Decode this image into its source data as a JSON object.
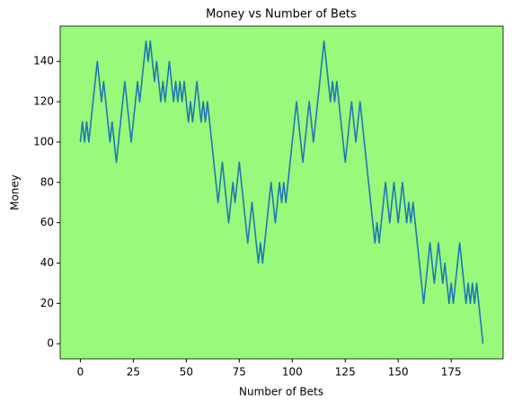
{
  "chart_data": {
    "type": "line",
    "title": "Money vs Number of Bets",
    "x_label": "Number of Bets",
    "y_label": "Money",
    "x": [
      0,
      1,
      2,
      3,
      4,
      5,
      6,
      7,
      8,
      9,
      10,
      11,
      12,
      13,
      14,
      15,
      16,
      17,
      18,
      19,
      20,
      21,
      22,
      23,
      24,
      25,
      26,
      27,
      28,
      29,
      30,
      31,
      32,
      33,
      34,
      35,
      36,
      37,
      38,
      39,
      40,
      41,
      42,
      43,
      44,
      45,
      46,
      47,
      48,
      49,
      50,
      51,
      52,
      53,
      54,
      55,
      56,
      57,
      58,
      59,
      60,
      61,
      62,
      63,
      64,
      65,
      66,
      67,
      68,
      69,
      70,
      71,
      72,
      73,
      74,
      75,
      76,
      77,
      78,
      79,
      80,
      81,
      82,
      83,
      84,
      85,
      86,
      87,
      88,
      89,
      90,
      91,
      92,
      93,
      94,
      95,
      96,
      97,
      98,
      99,
      100,
      101,
      102,
      103,
      104,
      105,
      106,
      107,
      108,
      109,
      110,
      111,
      112,
      113,
      114,
      115,
      116,
      117,
      118,
      119,
      120,
      121,
      122,
      123,
      124,
      125,
      126,
      127,
      128,
      129,
      130,
      131,
      132,
      133,
      134,
      135,
      136,
      137,
      138,
      139,
      140,
      141,
      142,
      143,
      144,
      145,
      146,
      147,
      148,
      149,
      150,
      151,
      152,
      153,
      154,
      155,
      156,
      157,
      158,
      159,
      160,
      161,
      162,
      163,
      164,
      165,
      166,
      167,
      168,
      169,
      170,
      171,
      172,
      173,
      174,
      175,
      176,
      177,
      178,
      179,
      180,
      181,
      182,
      183,
      184,
      185,
      186,
      187,
      188,
      189,
      190
    ],
    "series": [
      {
        "color": "#1f77b4",
        "values": [
          100,
          110,
          100,
          110,
          100,
          110,
          120,
          130,
          140,
          130,
          120,
          130,
          120,
          110,
          100,
          110,
          100,
          90,
          100,
          110,
          120,
          130,
          120,
          110,
          100,
          110,
          120,
          130,
          120,
          130,
          140,
          150,
          140,
          150,
          140,
          130,
          140,
          130,
          120,
          130,
          120,
          130,
          140,
          130,
          120,
          130,
          120,
          130,
          120,
          130,
          120,
          110,
          120,
          110,
          120,
          130,
          120,
          110,
          120,
          110,
          120,
          110,
          100,
          90,
          80,
          70,
          80,
          90,
          80,
          70,
          60,
          70,
          80,
          70,
          80,
          90,
          80,
          70,
          60,
          50,
          60,
          70,
          60,
          50,
          40,
          50,
          40,
          50,
          60,
          70,
          80,
          70,
          60,
          70,
          80,
          70,
          80,
          70,
          80,
          90,
          100,
          110,
          120,
          110,
          100,
          90,
          100,
          110,
          120,
          110,
          100,
          110,
          120,
          130,
          140,
          150,
          140,
          130,
          120,
          130,
          120,
          130,
          120,
          110,
          100,
          90,
          100,
          110,
          120,
          110,
          100,
          110,
          120,
          110,
          100,
          90,
          80,
          70,
          60,
          50,
          60,
          50,
          60,
          70,
          80,
          70,
          60,
          70,
          80,
          70,
          60,
          70,
          80,
          70,
          60,
          70,
          60,
          70,
          60,
          50,
          40,
          30,
          20,
          30,
          40,
          50,
          40,
          30,
          40,
          50,
          40,
          30,
          40,
          30,
          20,
          30,
          20,
          30,
          40,
          50,
          40,
          30,
          20,
          30,
          20,
          30,
          20,
          30,
          20,
          10,
          0
        ]
      }
    ],
    "xlim": [
      -9.5,
      199.5
    ],
    "ylim": [
      -7.5,
      157.5
    ],
    "xticks": [
      0,
      25,
      50,
      75,
      100,
      125,
      150,
      175
    ],
    "yticks": [
      0,
      20,
      40,
      60,
      80,
      100,
      120,
      140
    ],
    "background": "#98f97b",
    "grid": false
  }
}
